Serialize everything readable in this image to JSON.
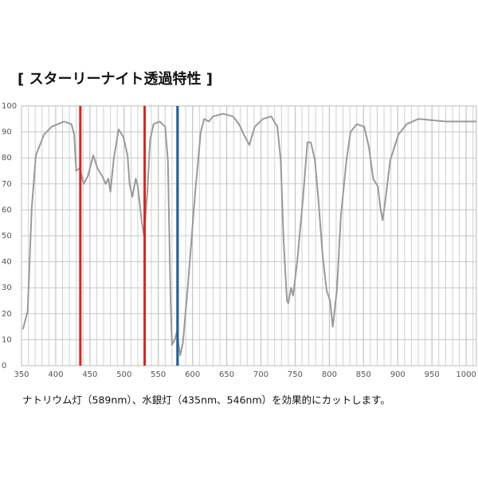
{
  "chart_data": {
    "type": "line",
    "title": "[ スターリーナイト透過特性 ]",
    "caption": "ナトリウム灯（589nm）、水銀灯（435nm、546nm）を効果的にカットします。",
    "x": [
      352,
      359,
      365,
      371,
      383,
      394,
      412,
      423,
      427,
      430,
      435,
      441,
      447,
      455,
      461,
      468,
      473,
      477,
      480,
      485,
      492,
      499,
      505,
      508,
      512,
      517,
      520,
      526,
      529,
      534,
      538,
      543,
      552,
      560,
      564,
      568,
      570,
      574,
      577,
      582,
      586,
      593,
      604,
      612,
      617,
      624,
      630,
      645,
      659,
      668,
      675,
      683,
      691,
      703,
      715,
      724,
      729,
      733,
      738,
      740,
      744,
      747,
      753,
      761,
      768,
      773,
      779,
      784,
      790,
      796,
      801,
      805,
      811,
      817,
      825,
      831,
      840,
      851,
      858,
      864,
      871,
      875,
      878,
      882,
      889,
      901,
      913,
      930,
      971,
      1015
    ],
    "series": [
      {
        "color": "#9a9a9a",
        "values": [
          14,
          21,
          61,
          81,
          89,
          92,
          94,
          93,
          89,
          75,
          76,
          70,
          73,
          81,
          76,
          73,
          70,
          72,
          67,
          80,
          91,
          88,
          81,
          70,
          65,
          72,
          69,
          55,
          50,
          67,
          87,
          93,
          94,
          92,
          79,
          24,
          8,
          10,
          13,
          4,
          9,
          30,
          67,
          90,
          95,
          94,
          96,
          97,
          96,
          93,
          89,
          85,
          92,
          95,
          96,
          92,
          79,
          49,
          25,
          24,
          30,
          27,
          40,
          63,
          86,
          86,
          79,
          64,
          43,
          29,
          25,
          15,
          29,
          58,
          79,
          90,
          93,
          92,
          84,
          72,
          69,
          60,
          56,
          64,
          79,
          89,
          93,
          95,
          94,
          94
        ]
      }
    ],
    "markers": [
      {
        "x": 436,
        "color": "#e3211c"
      },
      {
        "x": 530,
        "color": "#e3211c"
      },
      {
        "x": 578,
        "color": "#1f5fa8"
      }
    ],
    "xlim": [
      350,
      1015
    ],
    "ylim": [
      0,
      100
    ],
    "xticks": [
      350,
      400,
      450,
      500,
      550,
      600,
      650,
      700,
      750,
      800,
      850,
      900,
      950,
      1000
    ],
    "yticks": [
      0,
      10,
      20,
      30,
      40,
      50,
      60,
      70,
      80,
      90,
      100
    ],
    "x_grid_step": 10,
    "grid": true
  }
}
